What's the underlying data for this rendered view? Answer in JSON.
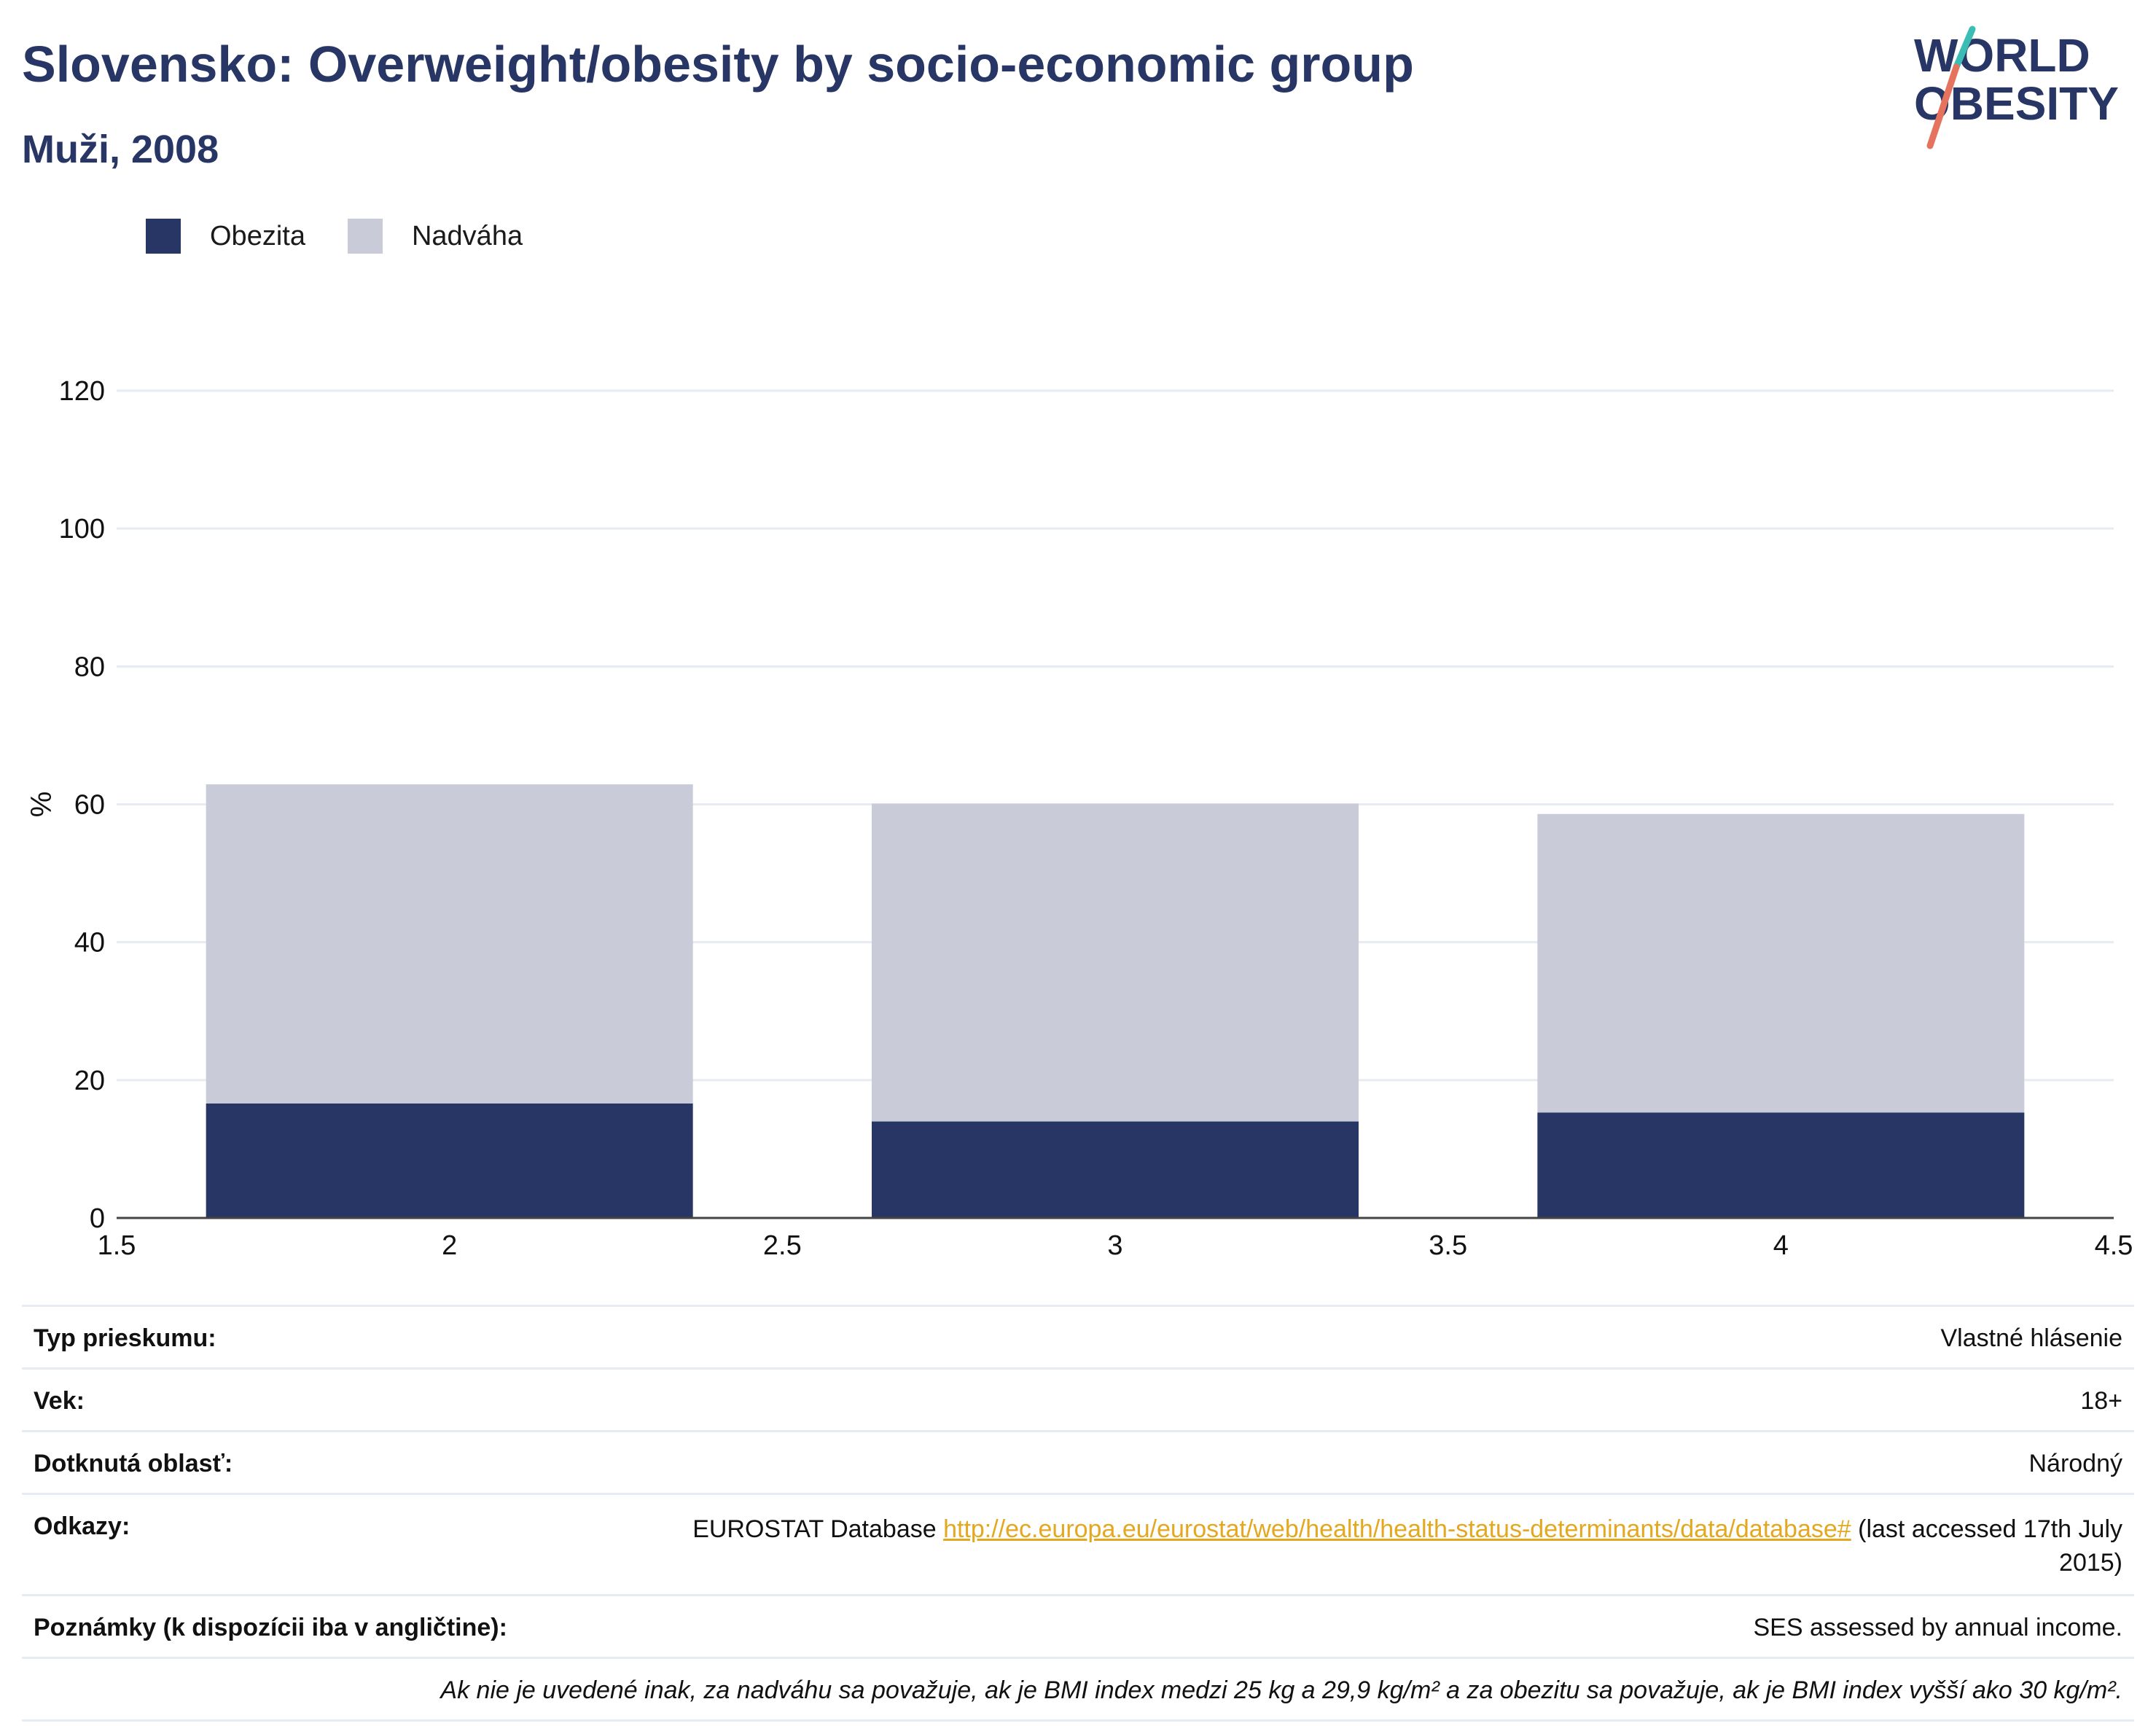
{
  "title": "Slovensko: Overweight/obesity by socio-economic group",
  "subtitle": "Muži, 2008",
  "logo": {
    "line1": "WORLD",
    "line2": "OBESITY"
  },
  "colors": {
    "obesity": "#283666",
    "overweight": "#c9ccd8",
    "accent_teal": "#3bbdb6",
    "accent_red": "#e5735d",
    "link": "#e3a81f"
  },
  "legend": [
    {
      "label": "Obezita",
      "color": "#283666"
    },
    {
      "label": "Nadváha",
      "color": "#c9ccd8"
    }
  ],
  "chart_data": {
    "type": "bar",
    "stacked": true,
    "x": [
      2,
      3,
      4
    ],
    "series": [
      {
        "name": "Obezita",
        "values": [
          16.6,
          14.0,
          15.3
        ]
      },
      {
        "name": "Nadváha",
        "values": [
          46.3,
          46.1,
          43.3
        ]
      }
    ],
    "ylabel": "%",
    "xlim": [
      1.5,
      4.5
    ],
    "ylim": [
      0,
      120
    ],
    "xticks": [
      "1.5",
      "2",
      "2.5",
      "3",
      "3.5",
      "4",
      "4.5"
    ],
    "yticks": [
      "0",
      "20",
      "40",
      "60",
      "80",
      "100",
      "120"
    ],
    "grid": true,
    "legend_position": "top-left"
  },
  "info": {
    "survey_type": {
      "label": "Typ prieskumu:",
      "value": "Vlastné hlásenie"
    },
    "age": {
      "label": "Vek:",
      "value": "18+"
    },
    "area": {
      "label": "Dotknutá oblasť:",
      "value": "Národný"
    },
    "references": {
      "label": "Odkazy:",
      "prefix": "EUROSTAT Database ",
      "link": "http://ec.europa.eu/eurostat/web/health/health-status-determinants/data/database#",
      "suffix": " (last accessed 17th July 2015)"
    },
    "notes": {
      "label": "Poznámky (k dispozícii iba v angličtine):",
      "value": "SES assessed by annual income."
    },
    "definition": "Ak nie je uvedené inak, za nadváhu sa považuje, ak je BMI index medzi 25 kg a 29,9 kg/m² a za obezitu sa považuje, ak je BMI index vyšší ako 30 kg/m²."
  }
}
